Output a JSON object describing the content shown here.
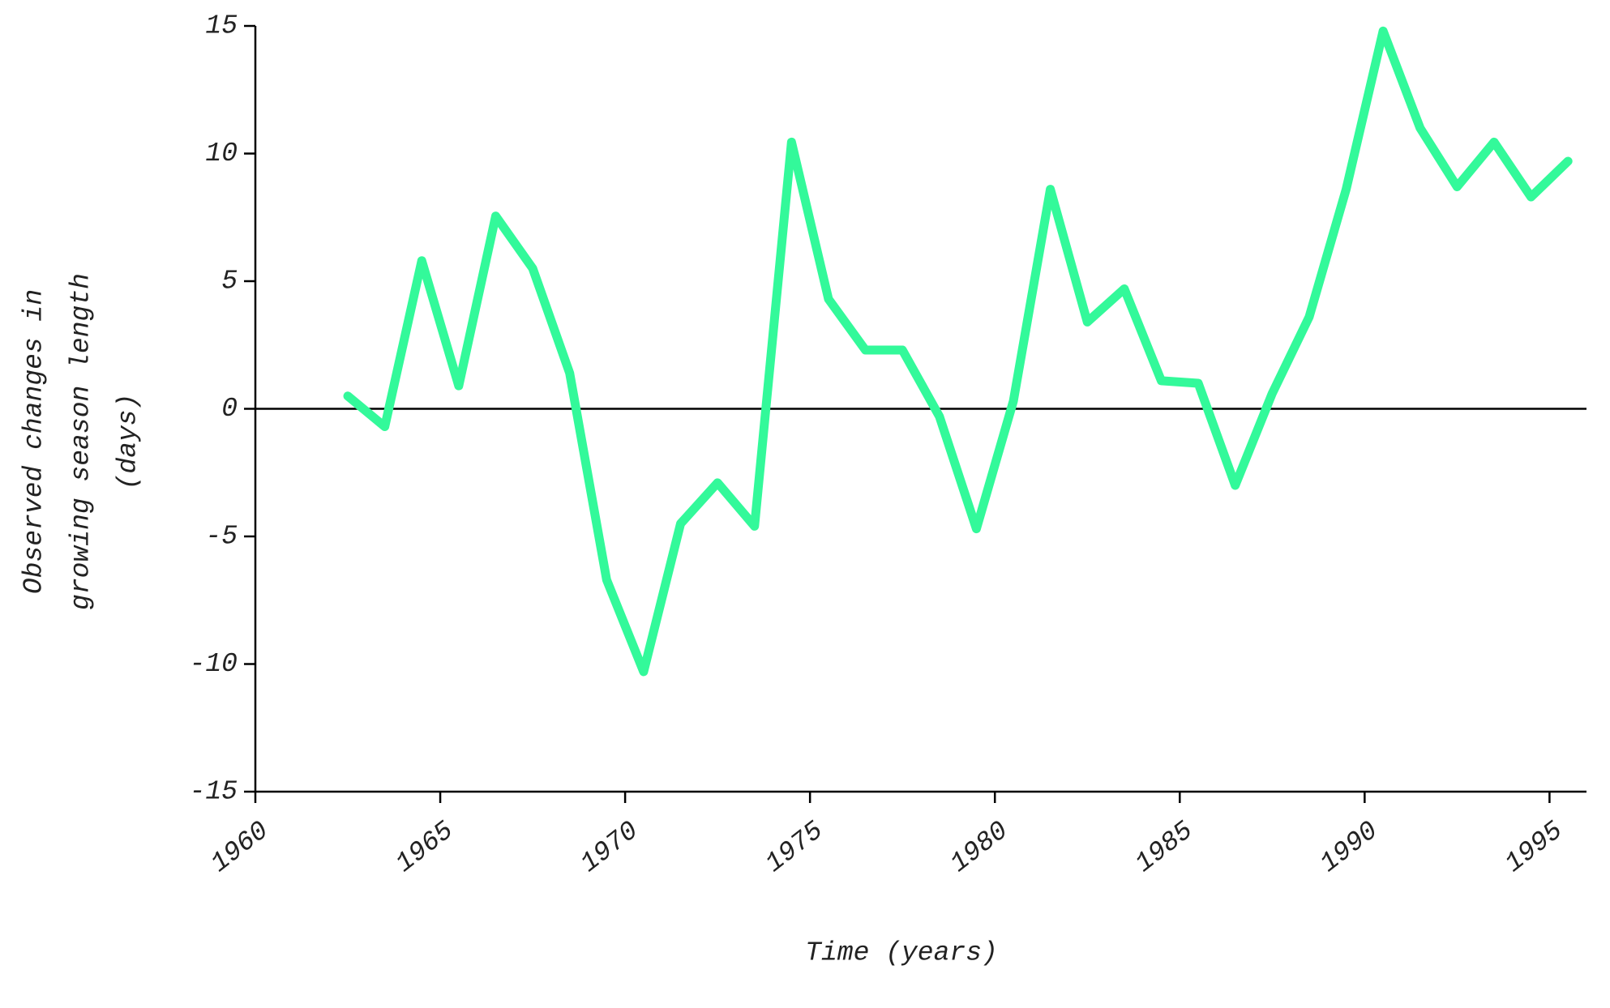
{
  "chart_data": {
    "type": "line",
    "xlabel": "Time (years)",
    "ylabel": [
      "Observed changes in",
      "growing season length",
      "(days)"
    ],
    "x": [
      1962.5,
      1963.5,
      1964.5,
      1965.5,
      1966.5,
      1967.5,
      1968.5,
      1969.5,
      1970.5,
      1971.5,
      1972.5,
      1973.5,
      1974.5,
      1975.5,
      1976.5,
      1977.5,
      1978.5,
      1979.5,
      1980.5,
      1981.5,
      1982.5,
      1983.5,
      1984.5,
      1985.5,
      1986.5,
      1987.5,
      1988.5,
      1989.5,
      1990.5,
      1991.5,
      1992.5,
      1993.5,
      1994.5,
      1995.5
    ],
    "values": [
      0.5,
      -0.7,
      5.8,
      0.9,
      7.55,
      5.5,
      1.4,
      -6.7,
      -10.3,
      -4.5,
      -2.9,
      -4.6,
      10.45,
      4.3,
      2.3,
      2.3,
      -0.3,
      -4.7,
      0.3,
      8.6,
      3.4,
      4.7,
      1.1,
      1.0,
      -3.0,
      0.6,
      3.6,
      8.6,
      14.8,
      11.0,
      8.7,
      10.45,
      8.3,
      9.7
    ],
    "color": "#33f99a",
    "xlim": [
      1960,
      1996
    ],
    "ylim": [
      -15,
      15
    ],
    "xticks": [
      1960,
      1965,
      1970,
      1975,
      1980,
      1985,
      1990,
      1995
    ],
    "yticks": [
      -15,
      -10,
      -5,
      0,
      5,
      10,
      15
    ],
    "zero_line": true
  }
}
